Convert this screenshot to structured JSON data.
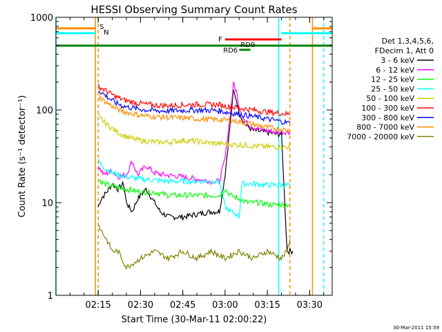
{
  "chart_data": {
    "type": "line",
    "title": "HESSI Observing Summary Count Rates",
    "xlabel": "Start Time (30-Mar-11 02:00:22)",
    "ylabel": "Count Rate (s⁻¹ detector⁻¹)",
    "yscale": "log",
    "ylim": [
      1,
      1000
    ],
    "xlim": [
      "02:00",
      "03:38"
    ],
    "x_ticks": [
      "02:15",
      "02:30",
      "02:45",
      "03:00",
      "03:15",
      "03:30"
    ],
    "y_ticks": [
      "1",
      "10",
      "100",
      "1000"
    ],
    "legend_title": "Det 1,3,4,5,6,",
    "legend_subtitle": "FDecim 1, Att 0",
    "legend_position": "right",
    "timestamp": "30-Mar-2011 15:59",
    "series": [
      {
        "name": "3 - 6 keV",
        "color": "#000000",
        "points": [
          [
            "02:15",
            9
          ],
          [
            "02:16",
            11
          ],
          [
            "02:18",
            13
          ],
          [
            "02:20",
            16
          ],
          [
            "02:22",
            14
          ],
          [
            "02:24",
            16
          ],
          [
            "02:25",
            10
          ],
          [
            "02:27",
            8
          ],
          [
            "02:29",
            11
          ],
          [
            "02:32",
            14
          ],
          [
            "02:35",
            10
          ],
          [
            "02:37",
            8
          ],
          [
            "02:40",
            7
          ],
          [
            "02:45",
            7
          ],
          [
            "02:50",
            7.5
          ],
          [
            "02:55",
            8
          ],
          [
            "02:58",
            8
          ],
          [
            "03:00",
            20
          ],
          [
            "03:02",
            80
          ],
          [
            "03:03",
            160
          ],
          [
            "03:04",
            130
          ],
          [
            "03:05",
            95
          ],
          [
            "03:07",
            70
          ],
          [
            "03:10",
            60
          ],
          [
            "03:14",
            58
          ],
          [
            "03:18",
            55
          ],
          [
            "03:20",
            55
          ],
          [
            "03:22",
            3
          ],
          [
            "03:24",
            3
          ]
        ]
      },
      {
        "name": "6 - 12 keV",
        "color": "#ff00ff",
        "points": [
          [
            "02:15",
            25
          ],
          [
            "02:17",
            20
          ],
          [
            "02:20",
            22
          ],
          [
            "02:22",
            19
          ],
          [
            "02:25",
            20
          ],
          [
            "02:27",
            28
          ],
          [
            "02:29",
            20
          ],
          [
            "02:32",
            25
          ],
          [
            "02:35",
            21
          ],
          [
            "02:38",
            20
          ],
          [
            "02:45",
            19
          ],
          [
            "02:50",
            18
          ],
          [
            "02:55",
            17
          ],
          [
            "02:58",
            17
          ],
          [
            "03:00",
            30
          ],
          [
            "03:02",
            100
          ],
          [
            "03:03",
            190
          ],
          [
            "03:04",
            160
          ],
          [
            "03:05",
            110
          ],
          [
            "03:07",
            75
          ],
          [
            "03:10",
            65
          ],
          [
            "03:14",
            60
          ],
          [
            "03:18",
            58
          ],
          [
            "03:20",
            58
          ],
          [
            "03:22",
            58
          ],
          [
            "03:23",
            58
          ]
        ]
      },
      {
        "name": "12 - 25 keV",
        "color": "#00ff00",
        "points": [
          [
            "02:15",
            18
          ],
          [
            "02:17",
            16
          ],
          [
            "02:20",
            15
          ],
          [
            "02:25",
            14
          ],
          [
            "02:30",
            13
          ],
          [
            "02:35",
            13
          ],
          [
            "02:40",
            12
          ],
          [
            "02:45",
            12
          ],
          [
            "02:50",
            12
          ],
          [
            "02:55",
            12
          ],
          [
            "02:58",
            12
          ],
          [
            "03:00",
            14
          ],
          [
            "03:02",
            12
          ],
          [
            "03:05",
            11
          ],
          [
            "03:08",
            10
          ],
          [
            "03:12",
            10
          ],
          [
            "03:16",
            9.5
          ],
          [
            "03:20",
            9.5
          ],
          [
            "03:23",
            9.5
          ]
        ]
      },
      {
        "name": "25 - 50 keV",
        "color": "#00ffff",
        "points": [
          [
            "02:15",
            28
          ],
          [
            "02:17",
            24
          ],
          [
            "02:20",
            21
          ],
          [
            "02:25",
            19
          ],
          [
            "02:30",
            18
          ],
          [
            "02:35",
            17.5
          ],
          [
            "02:40",
            17
          ],
          [
            "02:45",
            17
          ],
          [
            "02:50",
            17
          ],
          [
            "02:55",
            17
          ],
          [
            "02:58",
            17
          ],
          [
            "03:00",
            9
          ],
          [
            "03:02",
            8
          ],
          [
            "03:04",
            7.5
          ],
          [
            "03:05",
            7
          ],
          [
            "03:06",
            16
          ],
          [
            "03:10",
            16
          ],
          [
            "03:15",
            15.5
          ],
          [
            "03:20",
            15.5
          ],
          [
            "03:23",
            15.5
          ]
        ]
      },
      {
        "name": "50 - 100 keV",
        "color": "#cccc00",
        "points": [
          [
            "02:15",
            85
          ],
          [
            "02:18",
            70
          ],
          [
            "02:21",
            60
          ],
          [
            "02:24",
            53
          ],
          [
            "02:28",
            48
          ],
          [
            "02:32",
            46
          ],
          [
            "02:36",
            45
          ],
          [
            "02:40",
            45
          ],
          [
            "02:45",
            47
          ],
          [
            "02:50",
            46
          ],
          [
            "02:55",
            44
          ],
          [
            "03:00",
            43
          ],
          [
            "03:05",
            42
          ],
          [
            "03:10",
            41
          ],
          [
            "03:15",
            40
          ],
          [
            "03:20",
            40
          ],
          [
            "03:23",
            40
          ]
        ]
      },
      {
        "name": "100 - 300 keV",
        "color": "#ff0000",
        "points": [
          [
            "02:15",
            180
          ],
          [
            "02:18",
            160
          ],
          [
            "02:21",
            140
          ],
          [
            "02:24",
            128
          ],
          [
            "02:28",
            120
          ],
          [
            "02:32",
            115
          ],
          [
            "02:36",
            112
          ],
          [
            "02:40",
            112
          ],
          [
            "02:45",
            113
          ],
          [
            "02:50",
            115
          ],
          [
            "02:55",
            114
          ],
          [
            "02:58",
            114
          ],
          [
            "03:00",
            110
          ],
          [
            "03:05",
            105
          ],
          [
            "03:10",
            100
          ],
          [
            "03:15",
            95
          ],
          [
            "03:20",
            92
          ],
          [
            "03:23",
            90
          ]
        ]
      },
      {
        "name": "300 - 800 keV",
        "color": "#0000ff",
        "points": [
          [
            "02:15",
            165
          ],
          [
            "02:18",
            140
          ],
          [
            "02:21",
            120
          ],
          [
            "02:24",
            110
          ],
          [
            "02:28",
            104
          ],
          [
            "02:32",
            100
          ],
          [
            "02:36",
            98
          ],
          [
            "02:40",
            98
          ],
          [
            "02:45",
            99
          ],
          [
            "02:50",
            100
          ],
          [
            "02:55",
            99
          ],
          [
            "02:58",
            98
          ],
          [
            "03:00",
            95
          ],
          [
            "03:05",
            90
          ],
          [
            "03:10",
            85
          ],
          [
            "03:15",
            80
          ],
          [
            "03:20",
            75
          ],
          [
            "03:23",
            72
          ]
        ]
      },
      {
        "name": "800 - 7000 keV",
        "color": "#ff8c00",
        "points": [
          [
            "02:15",
            140
          ],
          [
            "02:18",
            120
          ],
          [
            "02:21",
            105
          ],
          [
            "02:24",
            96
          ],
          [
            "02:28",
            90
          ],
          [
            "02:32",
            86
          ],
          [
            "02:36",
            84
          ],
          [
            "02:40",
            83
          ],
          [
            "02:45",
            82
          ],
          [
            "02:50",
            80
          ],
          [
            "02:55",
            79
          ],
          [
            "03:00",
            78
          ],
          [
            "03:05",
            75
          ],
          [
            "03:10",
            70
          ],
          [
            "03:15",
            65
          ],
          [
            "03:20",
            62
          ],
          [
            "03:23",
            60
          ]
        ]
      },
      {
        "name": "7000 - 20000 keV",
        "color": "#808000",
        "points": [
          [
            "02:15",
            6
          ],
          [
            "02:16",
            5
          ],
          [
            "02:18",
            4
          ],
          [
            "02:20",
            3
          ],
          [
            "02:22",
            3
          ],
          [
            "02:25",
            2
          ],
          [
            "02:30",
            2.5
          ],
          [
            "02:35",
            3
          ],
          [
            "02:40",
            2.5
          ],
          [
            "02:45",
            3
          ],
          [
            "02:50",
            2.5
          ],
          [
            "02:55",
            3
          ],
          [
            "03:00",
            2.5
          ],
          [
            "03:05",
            3
          ],
          [
            "03:10",
            2.5
          ],
          [
            "03:15",
            3
          ],
          [
            "03:20",
            2.5
          ],
          [
            "03:22",
            3
          ],
          [
            "03:23",
            4
          ]
        ]
      }
    ],
    "flags": [
      {
        "label": "S",
        "color": "#ff8c00",
        "start": "02:00",
        "end": "02:14"
      },
      {
        "label": "N",
        "color": "#00ffff",
        "start": "02:00",
        "end": "02:14"
      },
      {
        "label": "F",
        "color": "#ff0000",
        "start": "03:00",
        "end": "03:20"
      },
      {
        "label": "RD9",
        "color": "#ff0000",
        "start": "03:05",
        "end": "03:09"
      },
      {
        "label": "RD6",
        "color": "#008000",
        "start": "03:05",
        "end": "03:09"
      }
    ],
    "flag_bars": [
      {
        "label": "S",
        "color": "#ff8c00",
        "start": "03:31",
        "end": "03:38"
      },
      {
        "label": "N",
        "color": "#00ffff",
        "start": "03:20",
        "end": "03:38"
      },
      {
        "label": "",
        "color": "#008000",
        "start": "02:00",
        "end": "03:38"
      }
    ],
    "vlines": [
      {
        "x": "02:00",
        "color": "#00ffff",
        "style": "solid"
      },
      {
        "x": "02:14",
        "color": "#ff8c00",
        "style": "solid"
      },
      {
        "x": "02:15",
        "color": "#00ffff",
        "style": "dashed"
      },
      {
        "x": "02:15",
        "color": "#ff8c00",
        "style": "dashed"
      },
      {
        "x": "03:19",
        "color": "#00ffff",
        "style": "solid"
      },
      {
        "x": "03:23",
        "color": "#ff8c00",
        "style": "dashed"
      },
      {
        "x": "03:31",
        "color": "#ff8c00",
        "style": "solid"
      },
      {
        "x": "03:35",
        "color": "#00ffff",
        "style": "dashed"
      }
    ]
  }
}
